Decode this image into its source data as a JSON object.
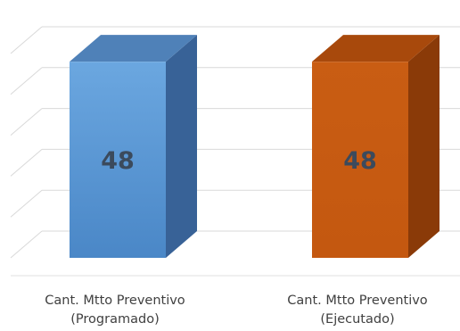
{
  "chart_data": {
    "type": "bar",
    "style": "3d-column",
    "categories": [
      [
        "Cant. Mtto Preventivo",
        "(Programado)"
      ],
      [
        "Cant. Mtto Preventivo",
        "(Ejecutado)"
      ]
    ],
    "values": [
      48,
      48
    ],
    "data_labels": [
      "48",
      "48"
    ],
    "colors": [
      "#5b9bd5",
      "#c55a11"
    ],
    "ylim": [
      0,
      50
    ],
    "gridlines": true,
    "legend": "none",
    "title": "",
    "xlabel": "",
    "ylabel": ""
  }
}
